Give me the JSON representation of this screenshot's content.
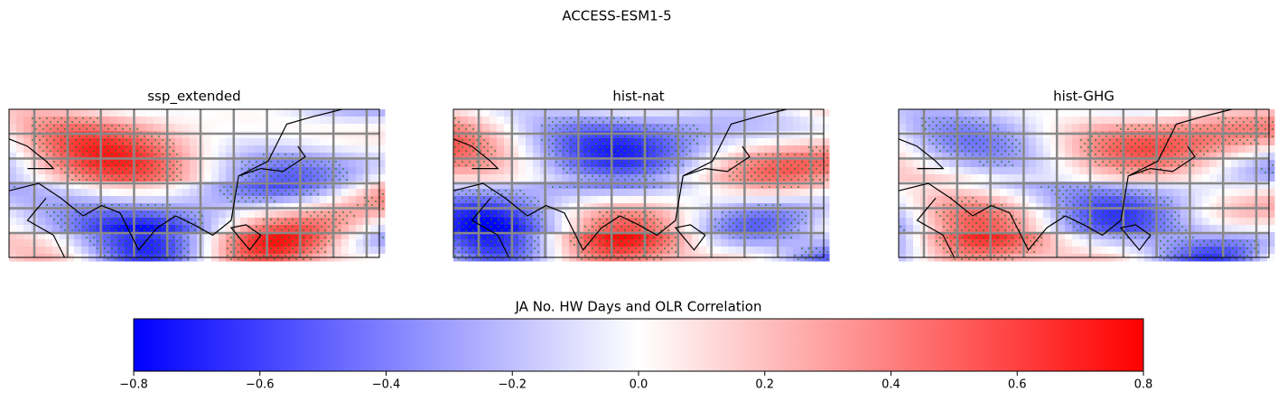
{
  "title": "ACCESS-ESM1-5",
  "panels": [
    {
      "title": "ssp_extended"
    },
    {
      "title": "hist-nat"
    },
    {
      "title": "hist-GHG"
    }
  ],
  "colorbar": {
    "label": "JA No. HW Days and OLR Correlation",
    "lim": [
      -0.8,
      0.8
    ],
    "ticks": [
      {
        "value": -0.8,
        "label": "−0.8"
      },
      {
        "value": -0.6,
        "label": "−0.6"
      },
      {
        "value": -0.4,
        "label": "−0.4"
      },
      {
        "value": -0.2,
        "label": "−0.2"
      },
      {
        "value": 0.0,
        "label": "0.0"
      },
      {
        "value": 0.2,
        "label": "0.2"
      },
      {
        "value": 0.4,
        "label": "0.4"
      },
      {
        "value": 0.6,
        "label": "0.6"
      },
      {
        "value": 0.8,
        "label": "0.8"
      }
    ]
  }
}
